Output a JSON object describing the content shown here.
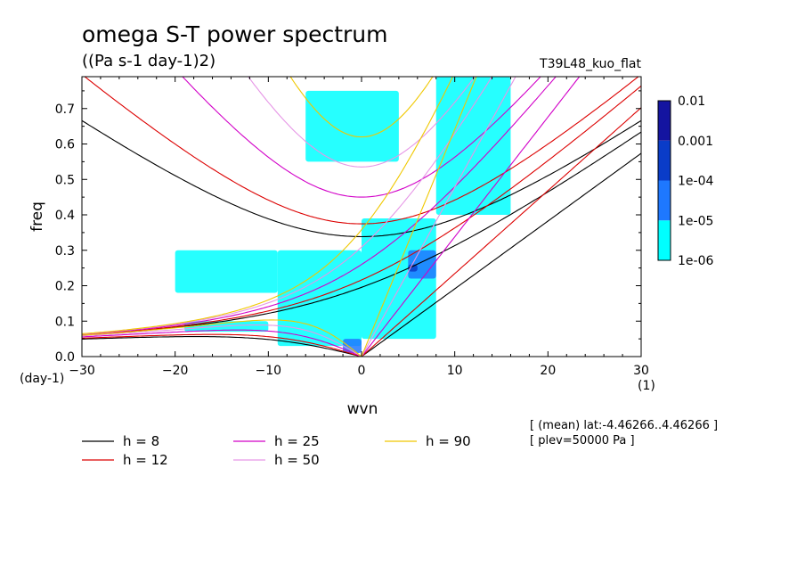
{
  "chart_data": {
    "type": "heatmap",
    "title": "omega S-T power spectrum",
    "subtitle": "((Pa s-1 day-1)2)",
    "model": "T39L48_kuo_flat",
    "xlabel": "wvn",
    "ylabel": "freq",
    "x_unit": "(1)",
    "y_unit": "(day-1)",
    "xlim": [
      -30,
      30
    ],
    "ylim": [
      0,
      0.79
    ],
    "x_ticks": [
      -30,
      -20,
      -10,
      0,
      10,
      20,
      30
    ],
    "y_ticks": [
      0.0,
      0.1,
      0.2,
      0.3,
      0.4,
      0.5,
      0.6,
      0.7
    ],
    "y_tick_labels": [
      "0.0",
      "0.1",
      "0.2",
      "0.3",
      "0.4",
      "0.5",
      "0.6",
      "0.7"
    ],
    "colorbar": {
      "levels": [
        "1e-06",
        "1e-05",
        "1e-04",
        "0.001",
        "0.01"
      ],
      "colors": [
        "#00ffff",
        "#1e78ff",
        "#0a3cc8",
        "#1414a0",
        "#5a14b4"
      ]
    },
    "dispersion_curves": [
      {
        "label": "h =  8",
        "h": 8,
        "color": "#000000"
      },
      {
        "label": "h = 12",
        "h": 12,
        "color": "#dc0000"
      },
      {
        "label": "h = 25",
        "h": 25,
        "color": "#d200c8"
      },
      {
        "label": "h = 50",
        "h": 50,
        "color": "#e696e6"
      },
      {
        "label": "h = 90",
        "h": 90,
        "color": "#f0c800"
      }
    ],
    "annotations": [
      "[ (mean) lat:-4.46266..4.46266 ]",
      "[ plev=50000 Pa ]"
    ],
    "shaded_regions": [
      {
        "level": 1,
        "wn": [
          -9,
          0
        ],
        "freq": [
          0.03,
          0.3
        ]
      },
      {
        "level": 1,
        "wn": [
          -20,
          -9
        ],
        "freq": [
          0.18,
          0.3
        ]
      },
      {
        "level": 1,
        "wn": [
          -19,
          -10
        ],
        "freq": [
          0.07,
          0.1
        ]
      },
      {
        "level": 1,
        "wn": [
          0,
          8
        ],
        "freq": [
          0.05,
          0.39
        ]
      },
      {
        "level": 1,
        "wn": [
          8,
          16
        ],
        "freq": [
          0.4,
          0.79
        ]
      },
      {
        "level": 1,
        "wn": [
          -6,
          4
        ],
        "freq": [
          0.55,
          0.75
        ]
      },
      {
        "level": 2,
        "wn": [
          -2,
          0
        ],
        "freq": [
          0.01,
          0.05
        ]
      },
      {
        "level": 2,
        "wn": [
          5,
          8
        ],
        "freq": [
          0.22,
          0.3
        ]
      },
      {
        "level": 3,
        "wn": [
          5,
          6
        ],
        "freq": [
          0.24,
          0.26
        ]
      }
    ]
  }
}
